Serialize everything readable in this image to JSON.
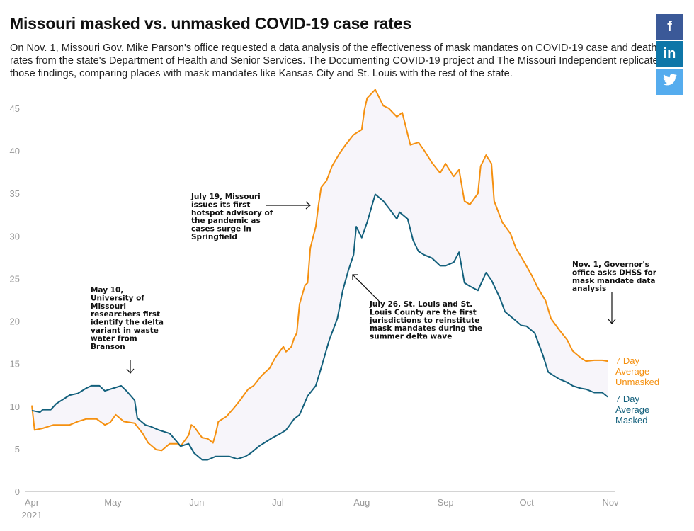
{
  "header": {
    "title": "Missouri masked vs. unmasked COVID-19 case rates",
    "description": "On Nov. 1, Missouri Gov. Mike Parson's office requested a data analysis of the effectiveness of mask mandates on COVID-19 case and death rates from the state's Department of Health and Senior Services. The Documenting COVID-19 project and The Missouri Independent replicated those findings, comparing places with mask mandates like Kansas City and St. Louis with the rest of the state."
  },
  "social": [
    {
      "name": "facebook",
      "glyph": "f",
      "color": "#3b5998"
    },
    {
      "name": "linkedin",
      "glyph": "in",
      "color": "#0e76a8"
    },
    {
      "name": "twitter",
      "glyph": "🐦",
      "color": "#55acee"
    }
  ],
  "chart_data": {
    "type": "line",
    "title": "",
    "xlabel": "",
    "ylabel": "",
    "ylim": [
      0,
      45
    ],
    "yticks": [
      "0",
      "5",
      "10",
      "15",
      "20",
      "25",
      "30",
      "35",
      "40",
      "45"
    ],
    "x_unit": "days since Apr 1, 2021",
    "xlim": [
      0,
      214
    ],
    "xticks": [
      {
        "day": 0,
        "label": "Apr",
        "sub": "2021"
      },
      {
        "day": 30,
        "label": "May"
      },
      {
        "day": 61,
        "label": "Jun"
      },
      {
        "day": 91,
        "label": "Jul"
      },
      {
        "day": 122,
        "label": "Aug"
      },
      {
        "day": 153,
        "label": "Sep"
      },
      {
        "day": 183,
        "label": "Oct"
      },
      {
        "day": 214,
        "label": "Nov"
      }
    ],
    "fill_between": "#f7f5fa",
    "series": [
      {
        "name": "unmasked",
        "label": [
          "7 Day",
          "Average",
          "Unmasked"
        ],
        "color": "#f5900f",
        "points": [
          [
            0,
            10.1
          ],
          [
            1,
            7.2
          ],
          [
            4,
            7.4
          ],
          [
            8,
            7.8
          ],
          [
            12,
            7.8
          ],
          [
            14,
            7.8
          ],
          [
            17,
            8.2
          ],
          [
            20,
            8.5
          ],
          [
            24,
            8.5
          ],
          [
            27,
            7.8
          ],
          [
            29,
            8.1
          ],
          [
            31,
            9.0
          ],
          [
            34,
            8.2
          ],
          [
            38,
            8.0
          ],
          [
            41,
            6.8
          ],
          [
            43,
            5.7
          ],
          [
            46,
            4.9
          ],
          [
            48,
            4.8
          ],
          [
            51,
            5.6
          ],
          [
            54,
            5.6
          ],
          [
            55,
            5.3
          ],
          [
            58,
            6.6
          ],
          [
            59,
            7.8
          ],
          [
            60,
            7.6
          ],
          [
            63,
            6.3
          ],
          [
            65,
            6.2
          ],
          [
            67,
            5.7
          ],
          [
            68,
            6.8
          ],
          [
            69,
            8.2
          ],
          [
            72,
            8.8
          ],
          [
            75,
            9.9
          ],
          [
            77,
            10.7
          ],
          [
            80,
            12
          ],
          [
            82,
            12.4
          ],
          [
            85,
            13.6
          ],
          [
            88,
            14.5
          ],
          [
            90,
            15.7
          ],
          [
            93,
            17
          ],
          [
            94,
            16.4
          ],
          [
            96,
            17
          ],
          [
            97,
            18
          ],
          [
            98,
            18.6
          ],
          [
            99,
            22
          ],
          [
            101,
            24.2
          ],
          [
            102,
            24.5
          ],
          [
            103,
            28.6
          ],
          [
            105,
            31.1
          ],
          [
            106,
            33.6
          ],
          [
            107,
            35.7
          ],
          [
            109,
            36.5
          ],
          [
            111,
            38.2
          ],
          [
            114,
            39.8
          ],
          [
            116,
            40.7
          ],
          [
            119,
            41.9
          ],
          [
            122,
            42.5
          ],
          [
            123,
            44.8
          ],
          [
            124,
            46.2
          ],
          [
            127,
            47.2
          ],
          [
            130,
            45.3
          ],
          [
            132,
            45
          ],
          [
            135,
            44
          ],
          [
            137,
            44.5
          ],
          [
            140,
            40.7
          ],
          [
            143,
            41
          ],
          [
            145,
            40.1
          ],
          [
            148,
            38.6
          ],
          [
            151,
            37.4
          ],
          [
            153,
            38.5
          ],
          [
            156,
            37
          ],
          [
            158,
            37.8
          ],
          [
            160,
            34.1
          ],
          [
            162,
            33.7
          ],
          [
            165,
            35
          ],
          [
            166,
            38.2
          ],
          [
            168,
            39.5
          ],
          [
            170,
            38.5
          ],
          [
            171,
            34.1
          ],
          [
            174,
            31.6
          ],
          [
            177,
            30.3
          ],
          [
            179,
            28.6
          ],
          [
            182,
            27
          ],
          [
            185,
            25.3
          ],
          [
            187,
            24
          ],
          [
            190,
            22.4
          ],
          [
            192,
            20.3
          ],
          [
            195,
            19
          ],
          [
            198,
            17.8
          ],
          [
            200,
            16.5
          ],
          [
            203,
            15.7
          ],
          [
            205,
            15.3
          ],
          [
            208,
            15.4
          ],
          [
            211,
            15.4
          ],
          [
            213,
            15.3
          ]
        ]
      },
      {
        "name": "masked",
        "label": [
          "7 Day",
          "Average",
          "Masked"
        ],
        "color": "#13607c",
        "points": [
          [
            0,
            9.5
          ],
          [
            3,
            9.3
          ],
          [
            4,
            9.6
          ],
          [
            7,
            9.6
          ],
          [
            9,
            10.3
          ],
          [
            12,
            10.9
          ],
          [
            14,
            11.3
          ],
          [
            17,
            11.5
          ],
          [
            20,
            12.1
          ],
          [
            22,
            12.4
          ],
          [
            25,
            12.4
          ],
          [
            27,
            11.8
          ],
          [
            30,
            12.1
          ],
          [
            33,
            12.4
          ],
          [
            35,
            11.8
          ],
          [
            38,
            10.7
          ],
          [
            39,
            8.6
          ],
          [
            42,
            7.8
          ],
          [
            44,
            7.6
          ],
          [
            47,
            7.2
          ],
          [
            51,
            6.8
          ],
          [
            54,
            5.7
          ],
          [
            55,
            5.3
          ],
          [
            58,
            5.6
          ],
          [
            60,
            4.5
          ],
          [
            63,
            3.7
          ],
          [
            65,
            3.7
          ],
          [
            68,
            4.1
          ],
          [
            71,
            4.1
          ],
          [
            73,
            4.1
          ],
          [
            76,
            3.8
          ],
          [
            79,
            4.1
          ],
          [
            81,
            4.5
          ],
          [
            84,
            5.3
          ],
          [
            86,
            5.7
          ],
          [
            89,
            6.3
          ],
          [
            92,
            6.8
          ],
          [
            94,
            7.2
          ],
          [
            97,
            8.5
          ],
          [
            99,
            9
          ],
          [
            102,
            11.2
          ],
          [
            105,
            12.4
          ],
          [
            107,
            14.5
          ],
          [
            110,
            17.8
          ],
          [
            113,
            20.3
          ],
          [
            115,
            23.6
          ],
          [
            117,
            25.9
          ],
          [
            119,
            27.8
          ],
          [
            120,
            31.1
          ],
          [
            122,
            29.8
          ],
          [
            124,
            31.6
          ],
          [
            127,
            34.9
          ],
          [
            130,
            34.1
          ],
          [
            132,
            33.3
          ],
          [
            135,
            32
          ],
          [
            136,
            32.8
          ],
          [
            139,
            32
          ],
          [
            141,
            29.5
          ],
          [
            143,
            28.2
          ],
          [
            145,
            27.8
          ],
          [
            148,
            27.4
          ],
          [
            151,
            26.5
          ],
          [
            153,
            26.5
          ],
          [
            156,
            26.9
          ],
          [
            158,
            28.1
          ],
          [
            160,
            24.5
          ],
          [
            162,
            24.1
          ],
          [
            165,
            23.6
          ],
          [
            168,
            25.7
          ],
          [
            170,
            24.8
          ],
          [
            173,
            22.8
          ],
          [
            175,
            21.1
          ],
          [
            178,
            20.3
          ],
          [
            181,
            19.5
          ],
          [
            183,
            19.4
          ],
          [
            186,
            18.6
          ],
          [
            189,
            16
          ],
          [
            191,
            14
          ],
          [
            195,
            13.2
          ],
          [
            198,
            12.8
          ],
          [
            200,
            12.4
          ],
          [
            203,
            12.1
          ],
          [
            205,
            12
          ],
          [
            208,
            11.6
          ],
          [
            211,
            11.6
          ],
          [
            213,
            11.1
          ]
        ]
      }
    ],
    "annotations": [
      {
        "name": "may-10",
        "lines": [
          "May 10,",
          "University of",
          "Missouri",
          "researchers first",
          "identify the delta",
          "variant in waste",
          "water from",
          "Branson"
        ]
      },
      {
        "name": "july-19",
        "lines": [
          "July 19, Missouri",
          "issues its first",
          "hotspot advisory of",
          "the pandemic as",
          "cases surge in",
          "Springfield"
        ]
      },
      {
        "name": "july-26",
        "lines": [
          "July 26, St. Louis and St.",
          "Louis County are the first",
          "jurisdictions to reinstitute",
          "mask mandates during the",
          "summer delta wave"
        ]
      },
      {
        "name": "nov-1",
        "lines": [
          "Nov. 1, Governor's",
          "office asks DHSS for",
          "mask mandate data",
          "analysis"
        ]
      }
    ]
  }
}
